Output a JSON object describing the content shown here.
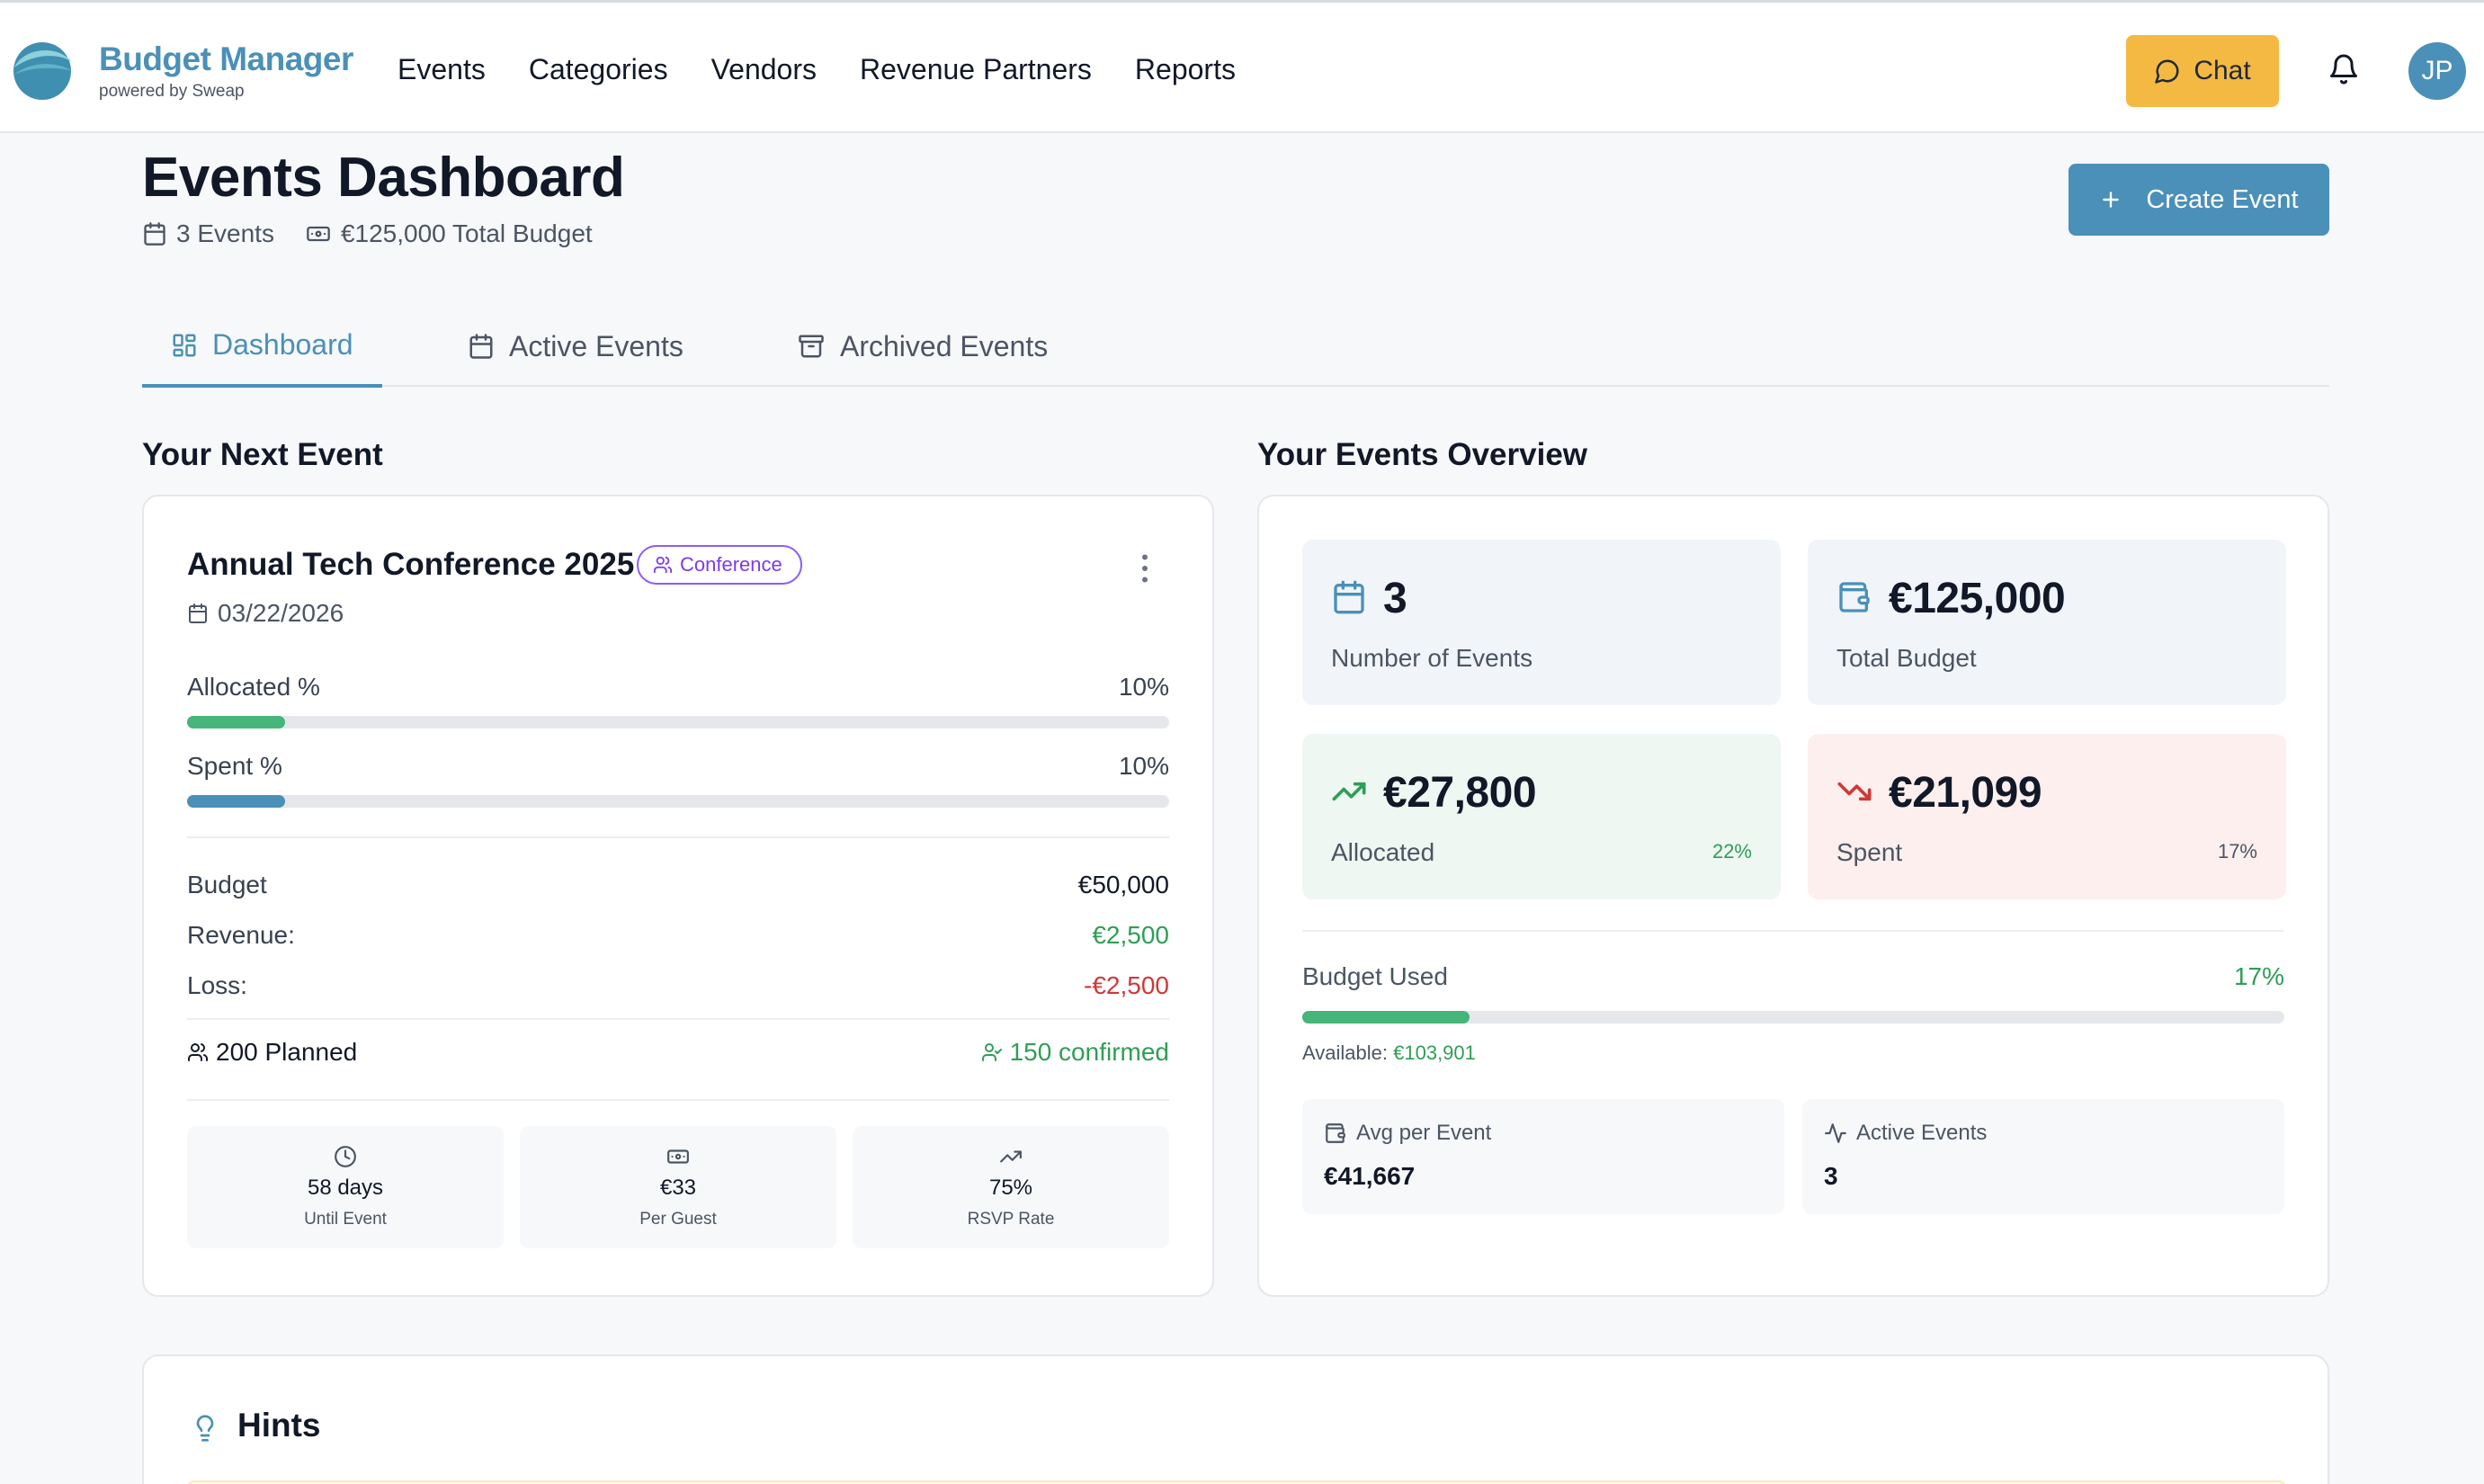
{
  "brand": {
    "name": "Budget Manager",
    "sub": "powered by Sweap"
  },
  "nav": [
    "Events",
    "Categories",
    "Vendors",
    "Revenue Partners",
    "Reports"
  ],
  "topbar": {
    "chat_label": "Chat",
    "avatar_initials": "JP"
  },
  "header": {
    "title": "Events Dashboard",
    "events_count": "3 Events",
    "total_budget": "€125,000 Total Budget",
    "create_label": "Create Event"
  },
  "tabs": [
    "Dashboard",
    "Active Events",
    "Archived Events"
  ],
  "next_event": {
    "section_title": "Your Next Event",
    "title": "Annual Tech Conference 2025",
    "badge": "Conference",
    "date": "03/22/2026",
    "allocated_label": "Allocated %",
    "allocated_value": "10%",
    "allocated_fraction": 0.1,
    "spent_label": "Spent %",
    "spent_value": "10%",
    "spent_fraction": 0.1,
    "budget_label": "Budget",
    "budget_value": "€50,000",
    "revenue_label": "Revenue:",
    "revenue_value": "€2,500",
    "loss_label": "Loss:",
    "loss_value": "-€2,500",
    "planned": "200 Planned",
    "confirmed": "150 confirmed",
    "metrics": [
      {
        "value": "58 days",
        "label": "Until Event"
      },
      {
        "value": "€33",
        "label": "Per Guest"
      },
      {
        "value": "75%",
        "label": "RSVP Rate"
      }
    ]
  },
  "overview": {
    "section_title": "Your Events Overview",
    "stats": [
      {
        "value": "3",
        "label": "Number of Events",
        "pct": ""
      },
      {
        "value": "€125,000",
        "label": "Total Budget",
        "pct": ""
      },
      {
        "value": "€27,800",
        "label": "Allocated",
        "pct": "22%"
      },
      {
        "value": "€21,099",
        "label": "Spent",
        "pct": "17%"
      }
    ],
    "budget_used_label": "Budget Used",
    "budget_used_value": "17%",
    "budget_used_fraction": 0.17,
    "available_label": "Available:",
    "available_value": "€103,901",
    "avg_label": "Avg per Event",
    "avg_value": "€41,667",
    "active_label": "Active Events",
    "active_value": "3"
  },
  "hints": {
    "title": "Hints"
  },
  "colors": {
    "brand": "#4a90b8",
    "chat": "#f4b942",
    "green": "#2f9e56",
    "red": "#d03838",
    "badge_purple": "#7c3aed"
  }
}
